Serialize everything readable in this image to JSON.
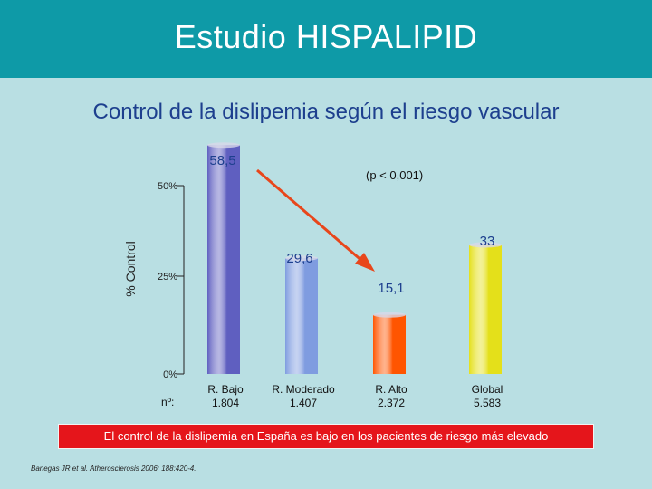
{
  "title": "Estudio HISPALIPID",
  "subtitle": "Control de la dislipemia según el riesgo vascular",
  "significance": "(p < 0,001)",
  "n_label": "nº:",
  "conclusion": "El control de la dislipemia en España es bajo en los pacientes de riesgo más elevado",
  "reference": "Banegas JR et al. Atherosclerosis 2006; 188:420-4.",
  "colors": {
    "header": "#0e9aa7",
    "background": "#b9dfe3",
    "title_text": "#1d3f8e",
    "arrow": "#e8461b",
    "banner": "#e5151b"
  },
  "chart_data": {
    "type": "bar",
    "title": "Control de la dislipemia según el riesgo vascular",
    "ylabel": "% Control",
    "yticks": [
      "0%",
      "25%",
      "50%"
    ],
    "ylim": [
      0,
      50
    ],
    "categories": [
      "R. Bajo",
      "R. Moderado",
      "R. Alto",
      "Global"
    ],
    "n": [
      "1.804",
      "1.407",
      "2.372",
      "5.583"
    ],
    "values": [
      58.5,
      29.6,
      15.1,
      33
    ],
    "value_labels": [
      "58,5",
      "29,6",
      "15,1",
      "33"
    ],
    "bar_colors": [
      "#5f5fc0",
      "#7f9ce0",
      "#ff5500",
      "#e4e01a"
    ],
    "grid": false,
    "legend": "none"
  }
}
